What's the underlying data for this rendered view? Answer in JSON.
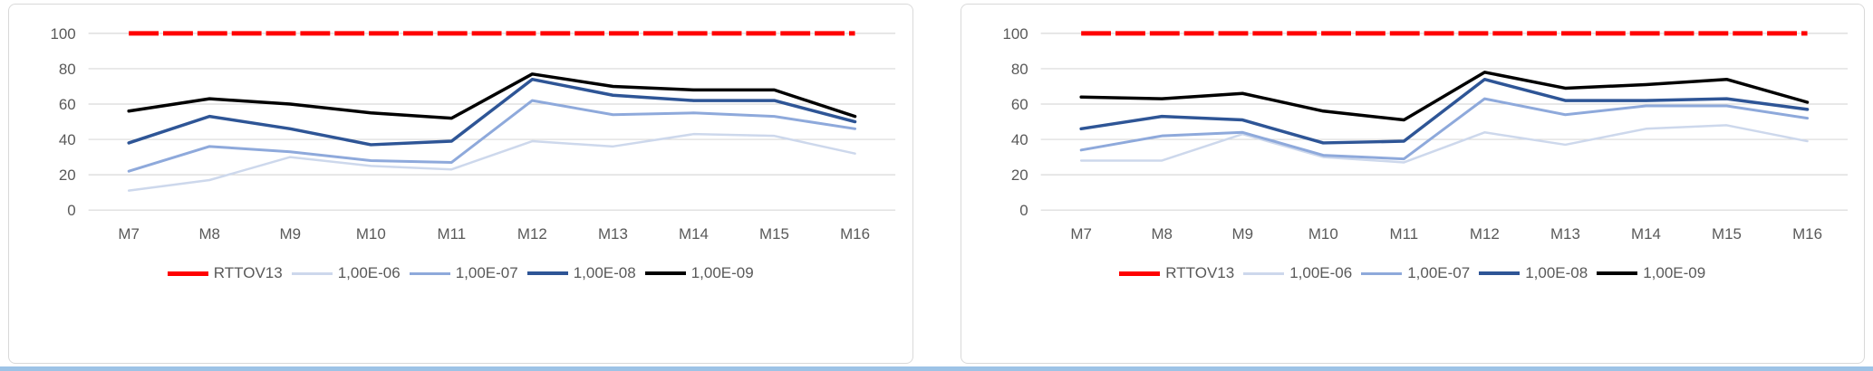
{
  "style": {
    "text_color": "#595959",
    "grid_color": "#D9D9D9",
    "panel_border": "#D9D9D9",
    "background": "#FFFFFF",
    "bottom_strip_color": "#9DC3E6"
  },
  "chart_data": [
    {
      "type": "line",
      "title": "",
      "xlabel": "",
      "ylabel": "",
      "categories": [
        "M7",
        "M8",
        "M9",
        "M10",
        "M11",
        "M12",
        "M13",
        "M14",
        "M15",
        "M16"
      ],
      "ylim": [
        0,
        100
      ],
      "yticks": [
        0,
        20,
        40,
        60,
        80,
        100
      ],
      "grid": true,
      "legend_position": "bottom",
      "series": [
        {
          "name": "RTTOV13",
          "color": "#FF0000",
          "stroke_width": 5,
          "dash": "33 5",
          "values": [
            100,
            100,
            100,
            100,
            100,
            100,
            100,
            100,
            100,
            100
          ]
        },
        {
          "name": "1,00E-06",
          "color": "#CDD8EC",
          "stroke_width": 2.5,
          "dash": "",
          "values": [
            11,
            17,
            30,
            25,
            23,
            39,
            36,
            43,
            42,
            32
          ]
        },
        {
          "name": "1,00E-07",
          "color": "#8EA9DB",
          "stroke_width": 3,
          "dash": "",
          "values": [
            22,
            36,
            33,
            28,
            27,
            62,
            54,
            55,
            53,
            46
          ]
        },
        {
          "name": "1,00E-08",
          "color": "#2E5596",
          "stroke_width": 3.5,
          "dash": "",
          "values": [
            38,
            53,
            46,
            37,
            39,
            74,
            65,
            62,
            62,
            50
          ]
        },
        {
          "name": "1,00E-09",
          "color": "#000000",
          "stroke_width": 3.5,
          "dash": "",
          "values": [
            56,
            63,
            60,
            55,
            52,
            77,
            70,
            68,
            68,
            53
          ]
        }
      ]
    },
    {
      "type": "line",
      "title": "",
      "xlabel": "",
      "ylabel": "",
      "categories": [
        "M7",
        "M8",
        "M9",
        "M10",
        "M11",
        "M12",
        "M13",
        "M14",
        "M15",
        "M16"
      ],
      "ylim": [
        0,
        100
      ],
      "yticks": [
        0,
        20,
        40,
        60,
        80,
        100
      ],
      "grid": true,
      "legend_position": "bottom",
      "series": [
        {
          "name": "RTTOV13",
          "color": "#FF0000",
          "stroke_width": 5,
          "dash": "33 5",
          "values": [
            100,
            100,
            100,
            100,
            100,
            100,
            100,
            100,
            100,
            100
          ]
        },
        {
          "name": "1,00E-06",
          "color": "#CDD8EC",
          "stroke_width": 2.5,
          "dash": "",
          "values": [
            28,
            28,
            43,
            30,
            27,
            44,
            37,
            46,
            48,
            39
          ]
        },
        {
          "name": "1,00E-07",
          "color": "#8EA9DB",
          "stroke_width": 3,
          "dash": "",
          "values": [
            34,
            42,
            44,
            31,
            29,
            63,
            54,
            59,
            59,
            52
          ]
        },
        {
          "name": "1,00E-08",
          "color": "#2E5596",
          "stroke_width": 3.5,
          "dash": "",
          "values": [
            46,
            53,
            51,
            38,
            39,
            74,
            62,
            62,
            63,
            57
          ]
        },
        {
          "name": "1,00E-09",
          "color": "#000000",
          "stroke_width": 3.5,
          "dash": "",
          "values": [
            64,
            63,
            66,
            56,
            51,
            78,
            69,
            71,
            74,
            61
          ]
        }
      ]
    }
  ]
}
